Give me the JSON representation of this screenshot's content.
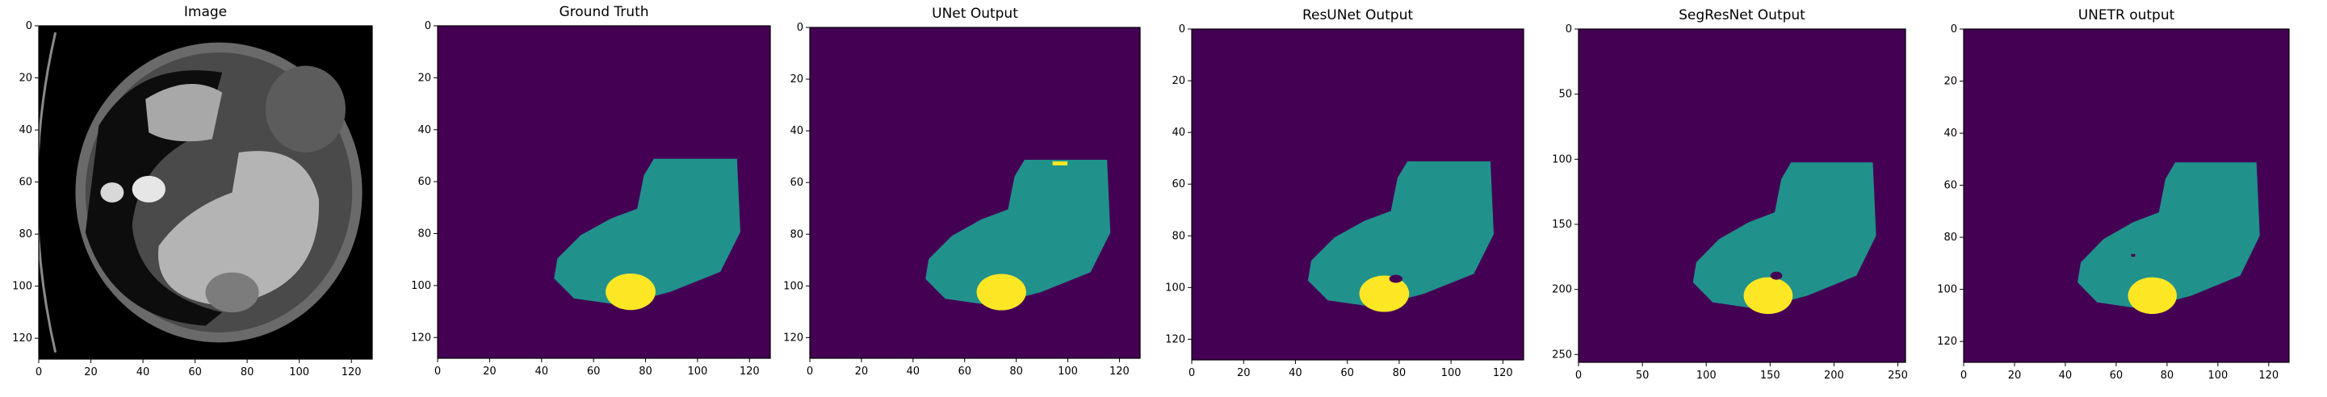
{
  "colors": {
    "background": "#440154",
    "organ": "#21918c",
    "lesion": "#fde725",
    "ct_air": "#000000"
  },
  "panels": [
    {
      "id": "image",
      "title": "Image",
      "kind": "ct-image",
      "xticks": [
        "0",
        "20",
        "40",
        "60",
        "80",
        "100",
        "120"
      ],
      "yticks": [
        "0",
        "20",
        "40",
        "60",
        "80",
        "100",
        "120"
      ]
    },
    {
      "id": "ground-truth",
      "title": "Ground Truth",
      "kind": "segmentation",
      "xticks": [
        "0",
        "20",
        "40",
        "60",
        "80",
        "100",
        "120"
      ],
      "yticks": [
        "0",
        "20",
        "40",
        "60",
        "80",
        "100",
        "120"
      ]
    },
    {
      "id": "unet",
      "title": "UNet Output",
      "kind": "segmentation",
      "xticks": [
        "0",
        "20",
        "40",
        "60",
        "80",
        "100",
        "120"
      ],
      "yticks": [
        "0",
        "20",
        "40",
        "60",
        "80",
        "100",
        "120"
      ]
    },
    {
      "id": "resunet",
      "title": "ResUNet Output",
      "kind": "segmentation",
      "xticks": [
        "0",
        "20",
        "40",
        "60",
        "80",
        "100",
        "120"
      ],
      "yticks": [
        "0",
        "20",
        "40",
        "60",
        "80",
        "100",
        "120"
      ]
    },
    {
      "id": "segresnet",
      "title": "SegResNet Output",
      "kind": "segmentation",
      "xticks": [
        "0",
        "50",
        "100",
        "150",
        "200",
        "250"
      ],
      "yticks": [
        "0",
        "50",
        "100",
        "150",
        "200",
        "250"
      ]
    },
    {
      "id": "unetr",
      "title": "UNETR output",
      "kind": "segmentation",
      "xticks": [
        "0",
        "20",
        "40",
        "60",
        "80",
        "100",
        "120"
      ],
      "yticks": [
        "0",
        "20",
        "40",
        "60",
        "80",
        "100",
        "120"
      ]
    }
  ]
}
